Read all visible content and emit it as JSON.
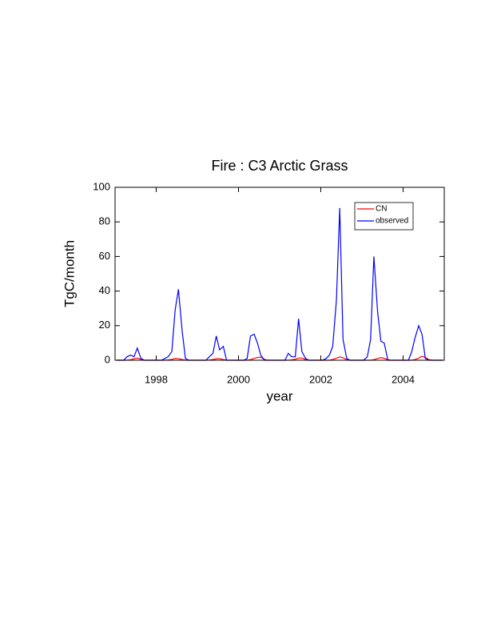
{
  "chart_data": {
    "type": "line",
    "title": "Fire : C3 Arctic Grass",
    "xlabel": "year",
    "ylabel": "TgC/month",
    "x": [
      1997.04,
      1997.13,
      1997.21,
      1997.29,
      1997.38,
      1997.46,
      1997.54,
      1997.63,
      1997.71,
      1997.79,
      1997.88,
      1997.96,
      1998.04,
      1998.13,
      1998.21,
      1998.29,
      1998.38,
      1998.46,
      1998.54,
      1998.63,
      1998.71,
      1998.79,
      1998.88,
      1998.96,
      1999.04,
      1999.13,
      1999.21,
      1999.29,
      1999.38,
      1999.46,
      1999.54,
      1999.63,
      1999.71,
      1999.79,
      1999.88,
      1999.96,
      2000.04,
      2000.13,
      2000.21,
      2000.29,
      2000.38,
      2000.46,
      2000.54,
      2000.63,
      2000.71,
      2000.79,
      2000.88,
      2000.96,
      2001.04,
      2001.13,
      2001.21,
      2001.29,
      2001.38,
      2001.46,
      2001.54,
      2001.63,
      2001.71,
      2001.79,
      2001.88,
      2001.96,
      2002.04,
      2002.13,
      2002.21,
      2002.29,
      2002.38,
      2002.46,
      2002.54,
      2002.63,
      2002.71,
      2002.79,
      2002.88,
      2002.96,
      2003.04,
      2003.13,
      2003.21,
      2003.29,
      2003.38,
      2003.46,
      2003.54,
      2003.63,
      2003.71,
      2003.79,
      2003.88,
      2003.96,
      2004.04,
      2004.13,
      2004.21,
      2004.29,
      2004.38,
      2004.46,
      2004.54,
      2004.63,
      2004.71,
      2004.79,
      2004.88,
      2004.96
    ],
    "series": [
      {
        "name": "CN",
        "color": "#ff0000",
        "values": [
          0,
          0,
          0,
          0,
          0.3,
          0.8,
          1.2,
          0.5,
          0,
          0,
          0,
          0,
          0,
          0,
          0,
          0.2,
          0.5,
          1,
          0.9,
          0.4,
          0,
          0,
          0,
          0,
          0,
          0,
          0,
          0.1,
          0.4,
          0.8,
          0.9,
          0.4,
          0,
          0,
          0,
          0,
          0,
          0,
          0,
          0.3,
          1,
          1.6,
          1.8,
          0.5,
          0,
          0,
          0,
          0,
          0,
          0,
          0,
          0.2,
          0.6,
          1.2,
          1.3,
          0.4,
          0,
          0,
          0,
          0,
          0,
          0,
          0,
          0.4,
          1.2,
          1.9,
          1.4,
          0.3,
          0,
          0,
          0,
          0,
          0,
          0,
          0,
          0.3,
          1,
          1.5,
          1.1,
          0.3,
          0,
          0,
          0,
          0,
          0,
          0,
          0,
          0.4,
          1.2,
          2.3,
          1.6,
          0.3,
          0,
          0,
          0,
          0
        ]
      },
      {
        "name": "observed",
        "color": "#0000ff",
        "values": [
          0,
          0,
          0,
          2,
          3,
          2,
          7,
          1,
          0,
          0,
          0,
          0,
          0,
          0,
          1,
          2,
          5,
          29,
          41,
          17,
          1,
          0,
          0,
          0,
          0,
          0,
          0,
          2,
          4,
          14,
          6,
          8,
          0,
          0,
          0,
          0,
          0,
          0,
          1,
          14,
          15,
          10,
          3,
          0,
          0,
          0,
          0,
          0,
          0,
          0,
          4,
          2,
          2,
          24,
          5,
          1,
          0,
          0,
          0,
          0,
          0,
          1,
          3,
          8,
          35,
          88,
          12,
          1,
          0,
          0,
          0,
          0,
          0,
          2,
          12,
          60,
          28,
          11,
          10,
          0,
          0,
          0,
          0,
          0,
          0,
          0,
          5,
          13,
          20,
          15,
          1,
          0,
          0,
          0,
          0,
          0
        ]
      }
    ],
    "xlim": [
      1997,
      2005
    ],
    "xticks": [
      1998,
      2000,
      2002,
      2004
    ],
    "ylim": [
      0,
      100
    ],
    "yticks": [
      0,
      20,
      40,
      60,
      80,
      100
    ],
    "legend": "upper right"
  }
}
